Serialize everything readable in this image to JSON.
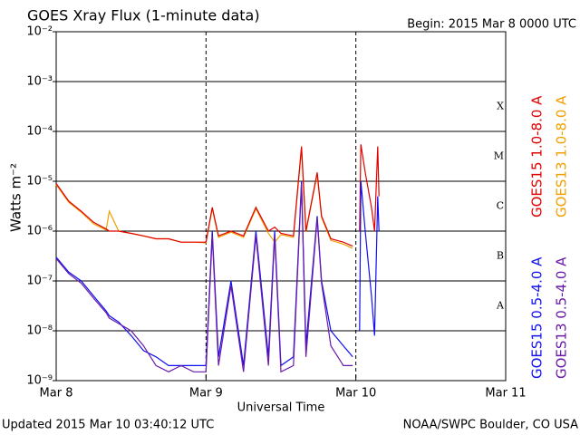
{
  "chart_data": {
    "type": "line",
    "title": "GOES Xray Flux (1-minute data)",
    "subtitle": "Begin:  2015 Mar 8 0000 UTC",
    "ylabel": "Watts m⁻²",
    "xlabel": "Universal Time",
    "footer_left": "Updated 2015 Mar 10 03:40:12 UTC",
    "footer_right": "NOAA/SWPC Boulder, CO USA",
    "flare_classes": [
      "A",
      "B",
      "C",
      "M",
      "X"
    ],
    "log_y": true,
    "grid": true,
    "xlim": [
      0,
      72
    ],
    "xticks": [
      {
        "value": 0,
        "label": "Mar 8"
      },
      {
        "value": 24,
        "label": "Mar 9"
      },
      {
        "value": 48,
        "label": "Mar 10"
      },
      {
        "value": 72,
        "label": "Mar 11"
      }
    ],
    "ylim": [
      1e-09,
      0.01
    ],
    "yticks": [
      {
        "value": 1e-09,
        "label": "10⁻⁹"
      },
      {
        "value": 1e-08,
        "label": "10⁻⁸"
      },
      {
        "value": 1e-07,
        "label": "10⁻⁷"
      },
      {
        "value": 1e-06,
        "label": "10⁻⁶"
      },
      {
        "value": 1e-05,
        "label": "10⁻⁵"
      },
      {
        "value": 0.0001,
        "label": "10⁻⁴"
      },
      {
        "value": 0.001,
        "label": "10⁻³"
      },
      {
        "value": 0.01,
        "label": "10⁻²"
      }
    ],
    "x": [
      0,
      2,
      4,
      6,
      8,
      8.5,
      10,
      12,
      14,
      16,
      18,
      20,
      22,
      24,
      25,
      26,
      28,
      30,
      32,
      34,
      35,
      36,
      38,
      39.3,
      40,
      41.8,
      42.5,
      44,
      46,
      47.5,
      48,
      48.6,
      48.8,
      49.5,
      50.5,
      51,
      51.5,
      51.7
    ],
    "series": [
      {
        "name": "GOES15 1.0-8.0 A",
        "color": "#e00000",
        "values": [
          9e-06,
          4e-06,
          2.5e-06,
          1.5e-06,
          1.1e-06,
          1e-06,
          1e-06,
          9e-07,
          8e-07,
          7e-07,
          7e-07,
          6e-07,
          6e-07,
          6e-07,
          3e-06,
          8e-07,
          1e-06,
          8e-07,
          3e-06,
          1e-06,
          1.2e-06,
          9e-07,
          8e-07,
          5e-05,
          1e-06,
          1.5e-05,
          2e-06,
          7e-07,
          6e-07,
          5e-07,
          null,
          1e-06,
          5.5e-05,
          1.5e-05,
          3e-06,
          1e-06,
          5e-05,
          5e-06
        ]
      },
      {
        "name": "GOES13 1.0-8.0 A",
        "color": "#f0a000",
        "values": [
          8.5e-06,
          3.8e-06,
          2.4e-06,
          1.4e-06,
          1.05e-06,
          2.5e-06,
          1e-06,
          9e-07,
          8e-07,
          7e-07,
          7e-07,
          6e-07,
          6e-07,
          5.8e-07,
          2.8e-06,
          7.5e-07,
          9.5e-07,
          7.5e-07,
          2.8e-06,
          9e-07,
          6e-07,
          8.5e-07,
          7.5e-07,
          4.5e-05,
          9.5e-07,
          1.4e-05,
          1.9e-06,
          6.5e-07,
          5.5e-07,
          4.5e-07,
          null,
          null,
          null,
          null,
          null,
          null,
          null,
          null
        ]
      },
      {
        "name": "GOES15 0.5-4.0 A",
        "color": "#1010f0",
        "values": [
          3e-07,
          1.5e-07,
          1e-07,
          5e-08,
          2.5e-08,
          2e-08,
          1.5e-08,
          8e-09,
          4e-09,
          3e-09,
          2e-09,
          2e-09,
          2e-09,
          2e-09,
          1e-06,
          3e-09,
          1e-07,
          2e-09,
          1e-06,
          3e-09,
          1e-06,
          2e-09,
          3e-09,
          1e-05,
          5e-09,
          2e-06,
          1e-07,
          1e-08,
          5e-09,
          3e-09,
          null,
          1e-08,
          1e-05,
          1e-06,
          5e-08,
          8e-09,
          5e-06,
          1e-06
        ]
      },
      {
        "name": "GOES13 0.5-4.0 A",
        "color": "#6a1aa8",
        "values": [
          2.8e-07,
          1.4e-07,
          9e-08,
          4.5e-08,
          2.3e-08,
          1.8e-08,
          1.4e-08,
          1e-08,
          5e-09,
          2e-09,
          1.5e-09,
          2e-09,
          1.5e-09,
          1.5e-09,
          8e-07,
          2e-09,
          8e-08,
          1.5e-09,
          8e-07,
          2e-09,
          8e-07,
          1.5e-09,
          2e-09,
          9e-06,
          3e-09,
          1.8e-06,
          9e-08,
          5e-09,
          2e-09,
          2e-09,
          null,
          null,
          null,
          null,
          null,
          null,
          null,
          null
        ]
      }
    ]
  }
}
